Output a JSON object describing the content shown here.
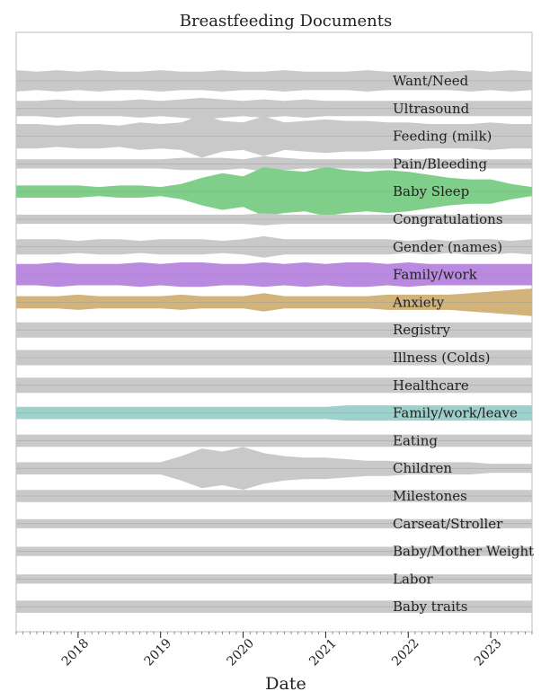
{
  "chart_data": {
    "type": "area",
    "title": "Breastfeeding Documents",
    "xlabel": "Date",
    "ylabel": "",
    "x_ticks": [
      "2018",
      "2019",
      "2020",
      "2021",
      "2022",
      "2023"
    ],
    "x_range": [
      "2017-04",
      "2023-07"
    ],
    "grid": true,
    "legend": "none",
    "colors": {
      "default": "#c9c9c9",
      "highlight": {
        "Baby Sleep": "#7fcf8a",
        "Family/work": "#b98ae0",
        "Anxiety": "#d2b37a",
        "Family/work/leave": "#9fd1cc"
      }
    },
    "x": [
      "2017-04",
      "2017-07",
      "2017-10",
      "2018-01",
      "2018-04",
      "2018-07",
      "2018-10",
      "2019-01",
      "2019-04",
      "2019-07",
      "2019-10",
      "2020-01",
      "2020-04",
      "2020-07",
      "2020-10",
      "2021-01",
      "2021-04",
      "2021-07",
      "2021-10",
      "2022-01",
      "2022-04",
      "2022-07",
      "2022-10",
      "2023-01",
      "2023-04",
      "2023-07"
    ],
    "series": [
      {
        "name": "Want/Need",
        "values": [
          0.7,
          0.6,
          0.7,
          0.6,
          0.7,
          0.6,
          0.6,
          0.7,
          0.6,
          0.6,
          0.7,
          0.6,
          0.6,
          0.7,
          0.6,
          0.6,
          0.6,
          0.7,
          0.6,
          0.6,
          0.6,
          0.6,
          0.7,
          0.6,
          0.7,
          0.6
        ]
      },
      {
        "name": "Ultrasound",
        "values": [
          0.5,
          0.5,
          0.6,
          0.5,
          0.5,
          0.5,
          0.6,
          0.5,
          0.6,
          0.7,
          0.6,
          0.5,
          0.6,
          0.5,
          0.6,
          0.5,
          0.5,
          0.5,
          0.5,
          0.5,
          0.5,
          0.5,
          0.5,
          0.5,
          0.5,
          0.5
        ]
      },
      {
        "name": "Feeding (milk)",
        "values": [
          0.8,
          0.8,
          0.7,
          0.8,
          0.8,
          0.7,
          0.9,
          0.8,
          0.9,
          1.4,
          1.0,
          0.9,
          1.3,
          0.9,
          1.0,
          1.1,
          1.0,
          1.0,
          0.9,
          0.9,
          0.8,
          0.8,
          0.8,
          0.9,
          0.8,
          0.8
        ]
      },
      {
        "name": "Pain/Bleeding",
        "values": [
          0.3,
          0.3,
          0.3,
          0.3,
          0.3,
          0.3,
          0.3,
          0.3,
          0.4,
          0.4,
          0.4,
          0.3,
          0.5,
          0.4,
          0.3,
          0.3,
          0.3,
          0.3,
          0.3,
          0.3,
          0.3,
          0.3,
          0.3,
          0.3,
          0.3,
          0.3
        ]
      },
      {
        "name": "Baby Sleep",
        "values": [
          0.4,
          0.4,
          0.4,
          0.4,
          0.3,
          0.4,
          0.4,
          0.3,
          0.5,
          0.9,
          1.2,
          1.0,
          1.6,
          1.4,
          1.3,
          1.6,
          1.4,
          1.3,
          1.4,
          1.3,
          1.1,
          0.9,
          0.8,
          0.8,
          0.5,
          0.3
        ]
      },
      {
        "name": "Congratulations",
        "values": [
          0.3,
          0.3,
          0.3,
          0.3,
          0.3,
          0.3,
          0.3,
          0.3,
          0.3,
          0.3,
          0.3,
          0.3,
          0.4,
          0.3,
          0.3,
          0.3,
          0.3,
          0.3,
          0.3,
          0.3,
          0.3,
          0.3,
          0.3,
          0.3,
          0.3,
          0.3
        ]
      },
      {
        "name": "Gender (names)",
        "values": [
          0.5,
          0.5,
          0.5,
          0.4,
          0.5,
          0.5,
          0.4,
          0.5,
          0.5,
          0.5,
          0.4,
          0.5,
          0.7,
          0.5,
          0.5,
          0.5,
          0.5,
          0.5,
          0.5,
          0.4,
          0.5,
          0.4,
          0.5,
          0.5,
          0.4,
          0.5
        ]
      },
      {
        "name": "Family/work",
        "values": [
          0.7,
          0.7,
          0.8,
          0.7,
          0.7,
          0.7,
          0.8,
          0.7,
          0.8,
          0.8,
          0.7,
          0.7,
          0.8,
          0.7,
          0.8,
          0.7,
          0.8,
          0.8,
          0.7,
          0.8,
          0.7,
          0.7,
          0.7,
          0.7,
          0.7,
          0.7
        ]
      },
      {
        "name": "Anxiety",
        "values": [
          0.4,
          0.4,
          0.4,
          0.5,
          0.4,
          0.4,
          0.4,
          0.4,
          0.5,
          0.4,
          0.4,
          0.4,
          0.6,
          0.4,
          0.4,
          0.4,
          0.4,
          0.4,
          0.5,
          0.5,
          0.5,
          0.5,
          0.6,
          0.7,
          0.8,
          0.9
        ]
      },
      {
        "name": "Registry",
        "values": [
          0.5,
          0.5,
          0.5,
          0.5,
          0.5,
          0.5,
          0.5,
          0.5,
          0.5,
          0.5,
          0.5,
          0.5,
          0.5,
          0.5,
          0.5,
          0.5,
          0.5,
          0.5,
          0.5,
          0.5,
          0.5,
          0.5,
          0.5,
          0.5,
          0.5,
          0.5
        ]
      },
      {
        "name": "Illness (Colds)",
        "values": [
          0.5,
          0.5,
          0.5,
          0.5,
          0.5,
          0.5,
          0.5,
          0.5,
          0.5,
          0.5,
          0.5,
          0.5,
          0.5,
          0.5,
          0.5,
          0.5,
          0.5,
          0.5,
          0.5,
          0.5,
          0.5,
          0.5,
          0.5,
          0.5,
          0.5,
          0.5
        ]
      },
      {
        "name": "Healthcare",
        "values": [
          0.5,
          0.5,
          0.5,
          0.5,
          0.5,
          0.5,
          0.5,
          0.5,
          0.5,
          0.5,
          0.5,
          0.5,
          0.5,
          0.5,
          0.5,
          0.5,
          0.5,
          0.5,
          0.5,
          0.5,
          0.5,
          0.5,
          0.5,
          0.5,
          0.5,
          0.5
        ]
      },
      {
        "name": "Family/work/leave",
        "values": [
          0.4,
          0.4,
          0.4,
          0.4,
          0.4,
          0.4,
          0.4,
          0.4,
          0.4,
          0.4,
          0.4,
          0.4,
          0.4,
          0.4,
          0.4,
          0.4,
          0.5,
          0.5,
          0.5,
          0.5,
          0.5,
          0.5,
          0.5,
          0.5,
          0.5,
          0.5
        ]
      },
      {
        "name": "Eating",
        "values": [
          0.4,
          0.4,
          0.4,
          0.4,
          0.4,
          0.4,
          0.4,
          0.4,
          0.4,
          0.4,
          0.4,
          0.4,
          0.4,
          0.4,
          0.4,
          0.4,
          0.4,
          0.4,
          0.4,
          0.4,
          0.4,
          0.4,
          0.4,
          0.4,
          0.4,
          0.4
        ]
      },
      {
        "name": "Children",
        "values": [
          0.4,
          0.4,
          0.4,
          0.4,
          0.4,
          0.4,
          0.4,
          0.4,
          0.8,
          1.3,
          1.1,
          1.4,
          1.0,
          0.8,
          0.7,
          0.7,
          0.6,
          0.5,
          0.5,
          0.4,
          0.4,
          0.4,
          0.4,
          0.3,
          0.3,
          0.3
        ]
      },
      {
        "name": "Milestones",
        "values": [
          0.4,
          0.4,
          0.4,
          0.4,
          0.4,
          0.4,
          0.4,
          0.4,
          0.4,
          0.4,
          0.4,
          0.4,
          0.4,
          0.4,
          0.4,
          0.4,
          0.4,
          0.4,
          0.4,
          0.4,
          0.4,
          0.4,
          0.4,
          0.4,
          0.4,
          0.4
        ]
      },
      {
        "name": "Carseat/Stroller",
        "values": [
          0.3,
          0.3,
          0.3,
          0.3,
          0.3,
          0.3,
          0.3,
          0.3,
          0.3,
          0.3,
          0.3,
          0.3,
          0.3,
          0.3,
          0.3,
          0.3,
          0.3,
          0.3,
          0.3,
          0.3,
          0.3,
          0.3,
          0.3,
          0.3,
          0.3,
          0.3
        ]
      },
      {
        "name": "Baby/Mother Weight",
        "values": [
          0.3,
          0.3,
          0.3,
          0.3,
          0.3,
          0.3,
          0.3,
          0.3,
          0.3,
          0.3,
          0.3,
          0.3,
          0.3,
          0.3,
          0.3,
          0.3,
          0.3,
          0.3,
          0.3,
          0.3,
          0.3,
          0.3,
          0.3,
          0.3,
          0.3,
          0.3
        ]
      },
      {
        "name": "Labor",
        "values": [
          0.3,
          0.3,
          0.3,
          0.3,
          0.3,
          0.3,
          0.3,
          0.3,
          0.3,
          0.3,
          0.3,
          0.3,
          0.3,
          0.3,
          0.3,
          0.3,
          0.3,
          0.3,
          0.3,
          0.3,
          0.3,
          0.3,
          0.3,
          0.3,
          0.3,
          0.3
        ]
      },
      {
        "name": "Baby traits",
        "values": [
          0.4,
          0.4,
          0.4,
          0.4,
          0.4,
          0.4,
          0.4,
          0.4,
          0.4,
          0.4,
          0.4,
          0.4,
          0.4,
          0.4,
          0.4,
          0.4,
          0.4,
          0.4,
          0.4,
          0.4,
          0.4,
          0.4,
          0.4,
          0.4,
          0.4,
          0.4
        ]
      }
    ]
  }
}
